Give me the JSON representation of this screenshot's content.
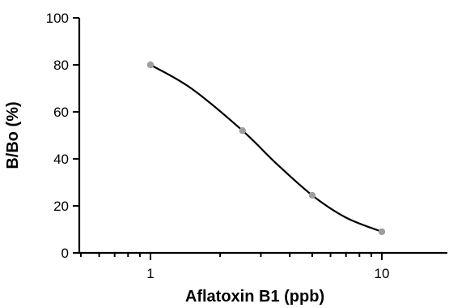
{
  "chart_data": {
    "type": "scatter",
    "title": "",
    "xlabel": "Aflatoxin B1 (ppb)",
    "ylabel": "B/Bo (%)",
    "x_scale": "log",
    "xlim": [
      0.3,
      30
    ],
    "ylim": [
      0,
      100
    ],
    "yticks": [
      0,
      20,
      40,
      60,
      80,
      100
    ],
    "xticks": [
      1,
      10
    ],
    "xtick_labels": [
      "1",
      "10"
    ],
    "ytick_labels": [
      "0",
      "20",
      "40",
      "60",
      "80",
      "100"
    ],
    "grid": false,
    "legend": "none",
    "series": [
      {
        "points": [
          {
            "x": 1,
            "y": 80
          },
          {
            "x": 2.5,
            "y": 52
          },
          {
            "x": 5,
            "y": 24.5
          },
          {
            "x": 10,
            "y": 9
          }
        ]
      }
    ],
    "fit_curve": {
      "type": "logistic",
      "points": [
        {
          "x": 1,
          "y": 80
        },
        {
          "x": 1.5,
          "y": 70
        },
        {
          "x": 2.5,
          "y": 52
        },
        {
          "x": 3.5,
          "y": 38
        },
        {
          "x": 5,
          "y": 24.5
        },
        {
          "x": 7,
          "y": 15
        },
        {
          "x": 10,
          "y": 9
        }
      ]
    },
    "colors": {
      "points": "#9e9e9e",
      "curve": "#000000",
      "axes": "#000000"
    }
  }
}
